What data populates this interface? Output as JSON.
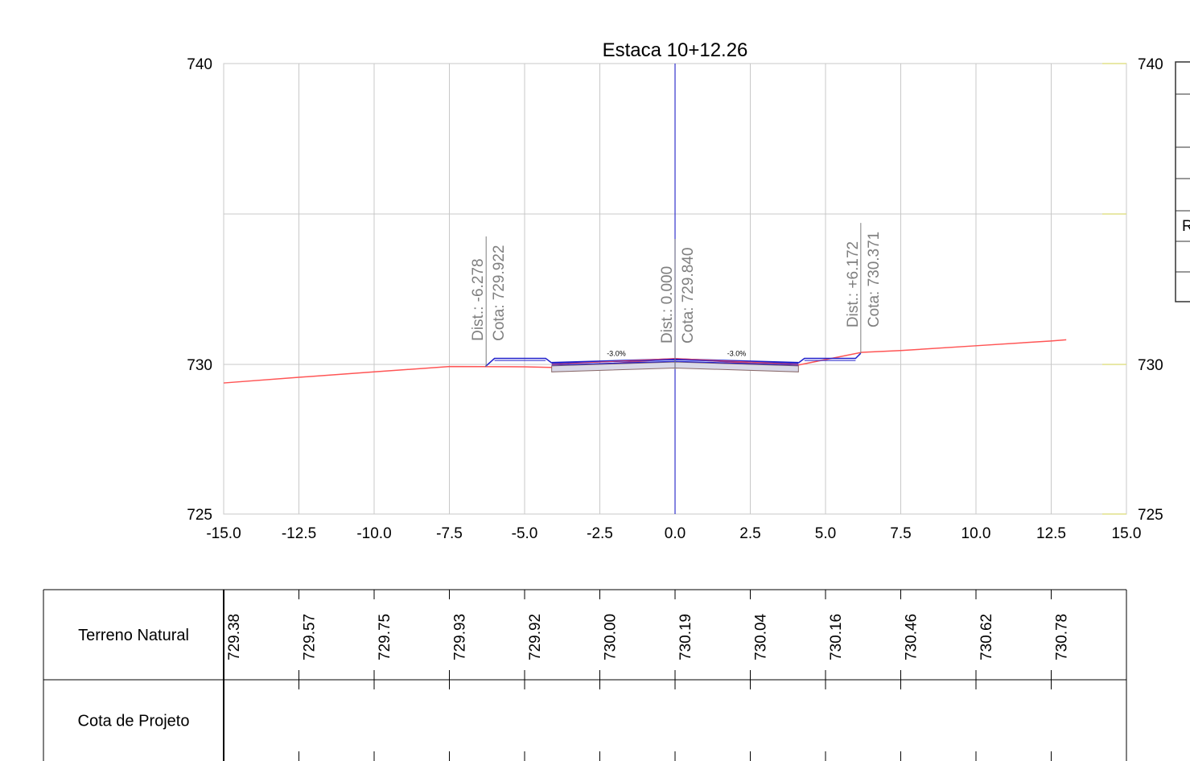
{
  "chart_data": {
    "type": "line",
    "title": "Estaca 10+12.26",
    "xlabel": "",
    "ylabel": "",
    "xlim": [
      -15.0,
      15.0
    ],
    "ylim": [
      725,
      740
    ],
    "x_ticks": [
      "-15.0",
      "-12.5",
      "-10.0",
      "-7.5",
      "-5.0",
      "-2.5",
      "0.0",
      "2.5",
      "5.0",
      "7.5",
      "10.0",
      "12.5",
      "15.0"
    ],
    "y_ticks": [
      "740",
      "730",
      "725"
    ],
    "grid": true,
    "series": [
      {
        "color": "#ff5555",
        "points": [
          [
            -15.0,
            729.38
          ],
          [
            -12.5,
            729.57
          ],
          [
            -10.0,
            729.75
          ],
          [
            -7.5,
            729.93
          ],
          [
            -5.0,
            729.92
          ],
          [
            -4.1,
            729.9
          ],
          [
            -2.5,
            730.0
          ],
          [
            0.0,
            730.19
          ],
          [
            2.5,
            730.04
          ],
          [
            4.1,
            729.98
          ],
          [
            5.0,
            730.16
          ],
          [
            6.2,
            730.4
          ],
          [
            7.5,
            730.46
          ],
          [
            10.0,
            730.62
          ],
          [
            12.5,
            730.78
          ],
          [
            13.0,
            730.82
          ]
        ]
      }
    ],
    "axis_line": {
      "x": 0.0,
      "color": "#3333cc"
    },
    "section_color": "#2020cc",
    "annotations": [
      {
        "x": -6.278,
        "y": 729.922,
        "dist": "Dist.: -6.278",
        "cota": "Cota: 729.922"
      },
      {
        "x": 0.0,
        "y": 729.84,
        "dist": "Dist.: 0.000",
        "cota": "Cota: 729.840"
      },
      {
        "x": 6.172,
        "y": 730.371,
        "dist": "Dist.: +6.172",
        "cota": "Cota: 730.371"
      }
    ],
    "slope_labels": [
      {
        "x": -2.0,
        "y": 730.18,
        "text": "-3.0%"
      },
      {
        "x": 2.0,
        "y": 730.18,
        "text": "-3.0%"
      }
    ]
  },
  "table": {
    "rows": [
      {
        "label": "Terreno Natural",
        "values": [
          "729.38",
          "729.57",
          "729.75",
          "729.93",
          "729.92",
          "730.00",
          "730.19",
          "730.04",
          "730.16",
          "730.46",
          "730.62",
          "730.78"
        ]
      },
      {
        "label": "Cota de Projeto",
        "values": []
      }
    ]
  },
  "side_panel": {
    "label": "R"
  }
}
